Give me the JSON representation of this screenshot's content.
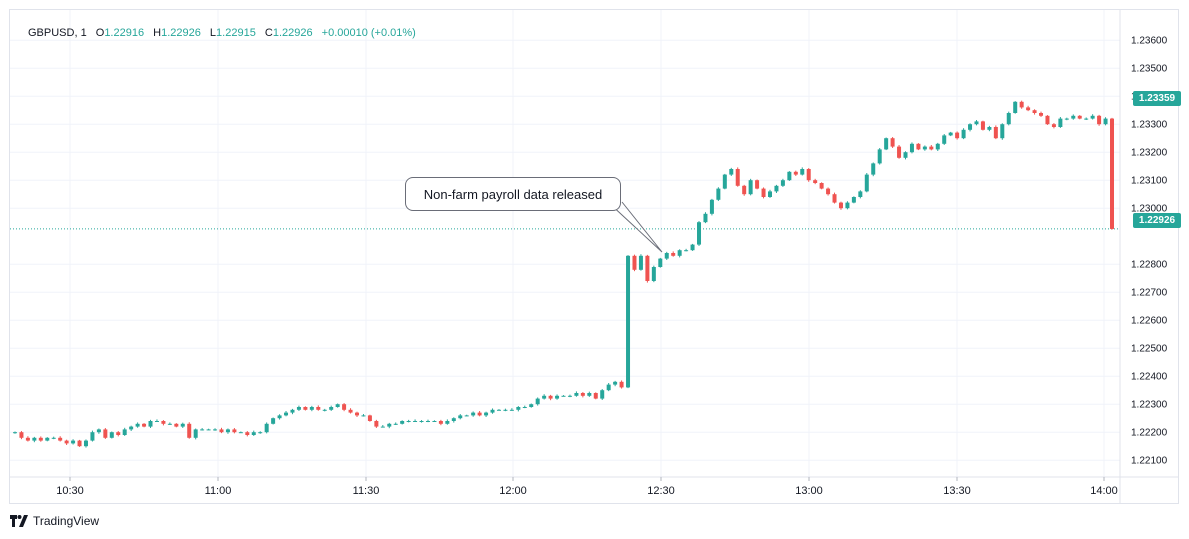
{
  "legend": {
    "symbol": "GBPUSD, 1",
    "o_label": "O",
    "o_value": "1.22916",
    "h_label": "H",
    "h_value": "1.22926",
    "l_label": "L",
    "l_value": "1.22915",
    "c_label": "C",
    "c_value": "1.22926",
    "change": "+0.00010 (+0.01%)"
  },
  "annotation": {
    "text": "Non-farm payroll data released"
  },
  "price_badges": {
    "high": "1.23359",
    "current": "1.22926"
  },
  "branding": {
    "name": "TradingView"
  },
  "colors": {
    "up": "#26a69a",
    "down": "#ef5350",
    "grid": "#f0f3fa",
    "axis_text": "#131722"
  },
  "chart_data": {
    "type": "candlestick",
    "symbol": "GBPUSD",
    "interval": "1",
    "x_ticks": [
      "10:30",
      "11:00",
      "11:30",
      "12:00",
      "12:30",
      "13:00",
      "13:30",
      "14:00"
    ],
    "y_ticks": [
      "1.23600",
      "1.23500",
      "1.23400",
      "1.23300",
      "1.23200",
      "1.23100",
      "1.23000",
      "1.22800",
      "1.22700",
      "1.22600",
      "1.22500",
      "1.22400",
      "1.22300",
      "1.22200",
      "1.22100"
    ],
    "ylim": [
      1.2205,
      1.2364
    ],
    "current_price": 1.22926,
    "badge_price": 1.23359,
    "grid": true,
    "candle_closes": [
      1.222,
      1.2218,
      1.2217,
      1.2218,
      1.2217,
      1.2218,
      1.2218,
      1.2217,
      1.2216,
      1.2217,
      1.2215,
      1.2217,
      1.222,
      1.2221,
      1.2218,
      1.222,
      1.2219,
      1.2221,
      1.2222,
      1.2223,
      1.2222,
      1.2224,
      1.2224,
      1.2223,
      1.2223,
      1.2222,
      1.2223,
      1.2218,
      1.2221,
      1.2221,
      1.2221,
      1.2221,
      1.222,
      1.2221,
      1.222,
      1.222,
      1.2219,
      1.222,
      1.222,
      1.2223,
      1.2225,
      1.2226,
      1.2227,
      1.2228,
      1.2229,
      1.2228,
      1.2229,
      1.2228,
      1.2228,
      1.2229,
      1.223,
      1.2228,
      1.2227,
      1.2226,
      1.2226,
      1.2224,
      1.2222,
      1.2222,
      1.2223,
      1.2223,
      1.2224,
      1.2224,
      1.2224,
      1.2224,
      1.2224,
      1.2224,
      1.2223,
      1.2224,
      1.2225,
      1.2226,
      1.2226,
      1.2227,
      1.2226,
      1.2227,
      1.2228,
      1.2228,
      1.2228,
      1.2228,
      1.2229,
      1.2229,
      1.223,
      1.2232,
      1.2233,
      1.2232,
      1.2233,
      1.2233,
      1.2233,
      1.2234,
      1.2233,
      1.2234,
      1.2232,
      1.2235,
      1.2237,
      1.2238,
      1.2236,
      1.2283,
      1.2278,
      1.2283,
      1.2274,
      1.2279,
      1.2282,
      1.2284,
      1.2283,
      1.2285,
      1.2285,
      1.2287,
      1.2295,
      1.2298,
      1.2303,
      1.2307,
      1.2312,
      1.2314,
      1.2308,
      1.2305,
      1.231,
      1.2307,
      1.2304,
      1.2306,
      1.2308,
      1.231,
      1.2313,
      1.2312,
      1.2314,
      1.231,
      1.2309,
      1.2307,
      1.2305,
      1.2302,
      1.23,
      1.2302,
      1.2304,
      1.2306,
      1.2312,
      1.2316,
      1.2321,
      1.2325,
      1.2322,
      1.2318,
      1.232,
      1.2323,
      1.2321,
      1.2322,
      1.2321,
      1.2323,
      1.2326,
      1.2327,
      1.2325,
      1.2328,
      1.233,
      1.2331,
      1.2328,
      1.2329,
      1.2325,
      1.233,
      1.2334,
      1.2338,
      1.2336,
      1.2335,
      1.2334,
      1.2333,
      1.233,
      1.2329,
      1.2332,
      1.2332,
      1.2333,
      1.2332,
      1.2332,
      1.2333,
      1.233,
      1.2332,
      1.22926
    ]
  }
}
